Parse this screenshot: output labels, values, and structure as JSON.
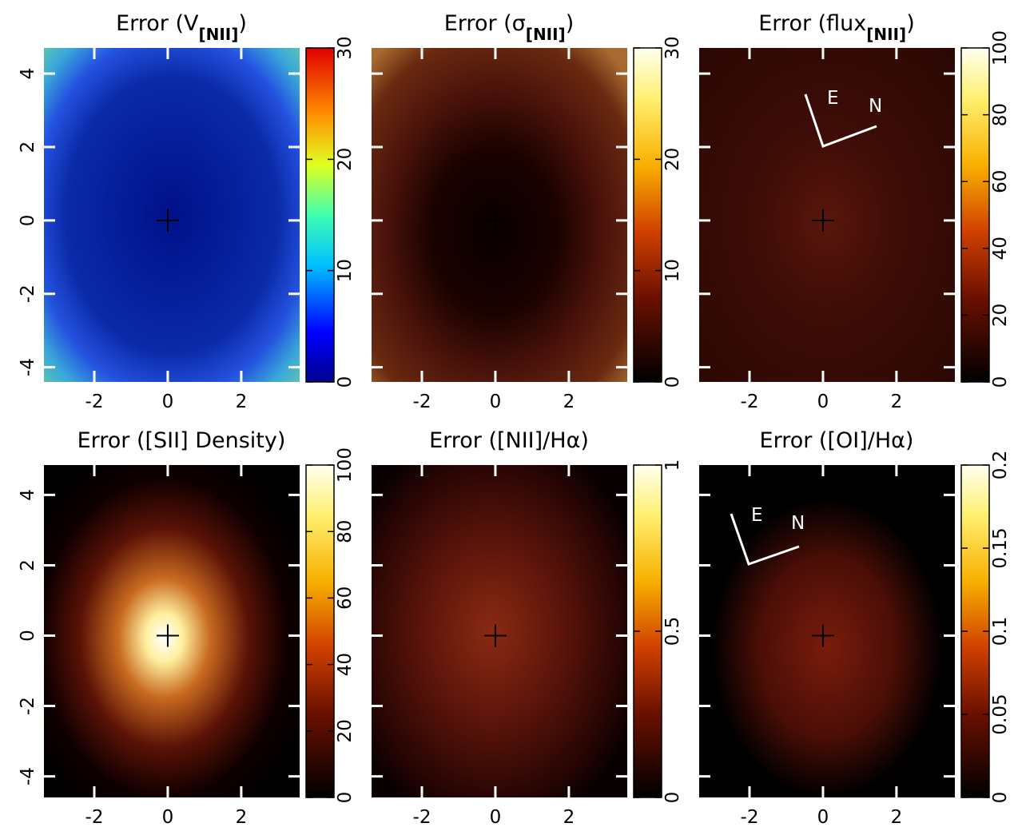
{
  "chart_data": [
    {
      "type": "heatmap",
      "title": "Error (V",
      "title_sub": "[NII]",
      "title_end": ")",
      "cmap": "jet",
      "xlim": [
        -3.37,
        3.59
      ],
      "ylim": [
        -4.4,
        4.7
      ],
      "xticks": [
        -2,
        0,
        2
      ],
      "yticks": [
        -4,
        -2,
        0,
        2,
        4
      ],
      "colorbar_lim": [
        0,
        30
      ],
      "colorbar_ticks": [
        0,
        10,
        20,
        30
      ]
    },
    {
      "type": "heatmap",
      "title": "Error (σ",
      "title_sub": "[NII]",
      "title_end": ")",
      "cmap": "heat",
      "xlim": [
        -3.37,
        3.59
      ],
      "ylim": [
        -4.4,
        4.7
      ],
      "xticks": [
        -2,
        0,
        2
      ],
      "yticks": [
        -4,
        -2,
        0,
        2,
        4
      ],
      "colorbar_lim": [
        0,
        30
      ],
      "colorbar_ticks": [
        0,
        10,
        20,
        30
      ]
    },
    {
      "type": "heatmap",
      "title": "Error (flux",
      "title_sub": "[NII]",
      "title_end": ")",
      "cmap": "heat",
      "xlim": [
        -3.37,
        3.59
      ],
      "ylim": [
        -4.4,
        4.7
      ],
      "xticks": [
        -2,
        0,
        2
      ],
      "yticks": [
        -4,
        -2,
        0,
        2,
        4
      ],
      "colorbar_lim": [
        0,
        100
      ],
      "colorbar_ticks": [
        0,
        20,
        40,
        60,
        80,
        100
      ],
      "annotations": [
        "E",
        "N"
      ]
    },
    {
      "type": "heatmap",
      "title": "Error ([SII] Density)",
      "cmap": "heat",
      "xlim": [
        -3.37,
        3.59
      ],
      "ylim": [
        -4.6,
        4.85
      ],
      "xticks": [
        -2,
        0,
        2
      ],
      "yticks": [
        -4,
        -2,
        0,
        2,
        4
      ],
      "colorbar_lim": [
        0,
        100
      ],
      "colorbar_ticks": [
        0,
        20,
        40,
        60,
        80,
        100
      ]
    },
    {
      "type": "heatmap",
      "title": "Error ([NII]/Hα)",
      "cmap": "heat",
      "xlim": [
        -3.37,
        3.59
      ],
      "ylim": [
        -4.6,
        4.85
      ],
      "xticks": [
        -2,
        0,
        2
      ],
      "yticks": [
        -4,
        -2,
        0,
        2,
        4
      ],
      "colorbar_lim": [
        0,
        1
      ],
      "colorbar_ticks": [
        0,
        0.5,
        1
      ]
    },
    {
      "type": "heatmap",
      "title": "Error ([OI]/Hα)",
      "cmap": "heat",
      "xlim": [
        -3.37,
        3.59
      ],
      "ylim": [
        -4.6,
        4.85
      ],
      "xticks": [
        -2,
        0,
        2
      ],
      "yticks": [
        -4,
        -2,
        0,
        2,
        4
      ],
      "colorbar_lim": [
        0,
        0.2
      ],
      "colorbar_ticks": [
        0,
        0.05,
        0.1,
        0.15,
        0.2
      ],
      "annotations": [
        "E",
        "N"
      ]
    }
  ]
}
